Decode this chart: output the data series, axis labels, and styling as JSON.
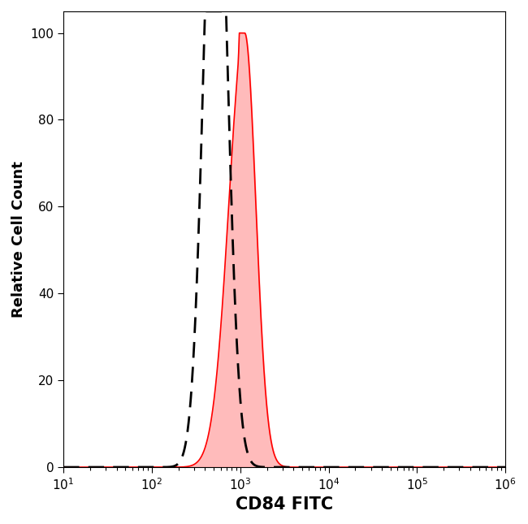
{
  "title": "",
  "xlabel": "CD84 FITC",
  "ylabel": "Relative Cell Count",
  "xlim_log": [
    1,
    6
  ],
  "ylim": [
    0,
    105
  ],
  "yticks": [
    0,
    20,
    40,
    60,
    80,
    100
  ],
  "background_color": "#ffffff",
  "isotype_color": "#000000",
  "antibody_color": "#ff0000",
  "antibody_fill_color": "#ffbbbb",
  "isotype_peak_log": 2.72,
  "isotype_sigma_log": 0.13,
  "isotype_amplitude": 160,
  "antibody_peak_log": 3.05,
  "antibody_sigma_log": 0.18,
  "antibody_amplitude": 100,
  "xlabel_fontsize": 15,
  "ylabel_fontsize": 13,
  "tick_fontsize": 11
}
